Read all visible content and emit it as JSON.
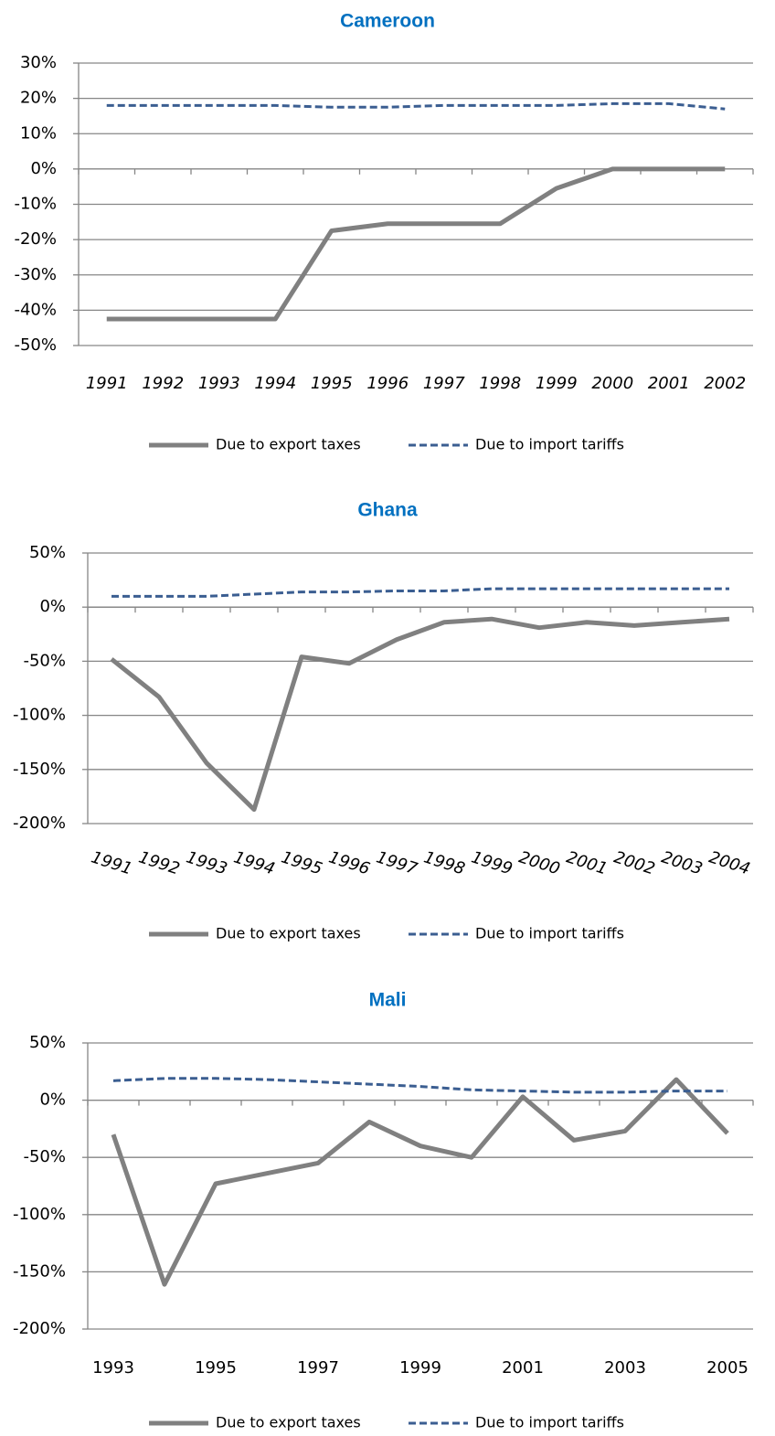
{
  "chart_data": [
    {
      "type": "line",
      "title": "Cameroon",
      "categories": [
        "1991",
        "1992",
        "1993",
        "1994",
        "1995",
        "1996",
        "1997",
        "1998",
        "1999",
        "2000",
        "2001",
        "2002"
      ],
      "series": [
        {
          "name": "Due to export taxes",
          "color": "#808080",
          "dashed": false,
          "values": [
            -42.5,
            -42.5,
            -42.5,
            -42.5,
            -17.5,
            -15.5,
            -15.5,
            -15.5,
            -5.5,
            0,
            0,
            0
          ]
        },
        {
          "name": "Due to import tariffs",
          "color": "#3b5e91",
          "dashed": true,
          "values": [
            18,
            18,
            18,
            18,
            17.5,
            17.5,
            18,
            18,
            18,
            18.5,
            18.5,
            17
          ]
        }
      ],
      "ylim": [
        -50,
        30
      ],
      "yticks": [
        {
          "value": -50,
          "label": "-50%"
        },
        {
          "value": -40,
          "label": "-40%"
        },
        {
          "value": -30,
          "label": "-30%"
        },
        {
          "value": -20,
          "label": "-20%"
        },
        {
          "value": -10,
          "label": "-10%"
        },
        {
          "value": 0,
          "label": "0%"
        },
        {
          "value": 10,
          "label": "10%"
        },
        {
          "value": 20,
          "label": "20%"
        },
        {
          "value": 30,
          "label": "30%"
        }
      ],
      "grid": true,
      "legend": "bottom"
    },
    {
      "type": "line",
      "title": "Ghana",
      "categories": [
        "1991",
        "1992",
        "1993",
        "1994",
        "1995",
        "1996",
        "1997",
        "1998",
        "1999",
        "2000",
        "2001",
        "2002",
        "2003",
        "2004"
      ],
      "series": [
        {
          "name": "Due to export taxes",
          "color": "#808080",
          "dashed": false,
          "values": [
            -48,
            -83,
            -144,
            -187,
            -46,
            -52,
            -30,
            -14,
            -11,
            -19,
            -14,
            -17,
            -14,
            -11
          ]
        },
        {
          "name": "Due to import tariffs",
          "color": "#3b5e91",
          "dashed": true,
          "values": [
            10,
            10,
            10,
            12,
            14,
            14,
            15,
            15,
            17,
            17,
            17,
            17,
            17,
            17
          ]
        }
      ],
      "ylim": [
        -200,
        50
      ],
      "yticks": [
        {
          "value": -200,
          "label": "-200%"
        },
        {
          "value": -150,
          "label": "-150%"
        },
        {
          "value": -100,
          "label": "-100%"
        },
        {
          "value": -50,
          "label": "-50%"
        },
        {
          "value": 0,
          "label": "0%"
        },
        {
          "value": 50,
          "label": "50%"
        }
      ],
      "grid": true,
      "legend": "bottom"
    },
    {
      "type": "line",
      "title": "Mali",
      "x": [
        1993,
        1994,
        1995,
        1996,
        1997,
        1998,
        1999,
        2000,
        2001,
        2002,
        2003,
        2004,
        2005
      ],
      "series": [
        {
          "name": "Due to export taxes",
          "color": "#808080",
          "dashed": false,
          "values": [
            -30,
            -161,
            -73,
            -64,
            -55,
            -19,
            -40,
            -50,
            3,
            -35,
            -27,
            18,
            -29
          ]
        },
        {
          "name": "Due to import tariffs",
          "color": "#3b5e91",
          "dashed": true,
          "values": [
            17,
            19,
            19,
            18,
            16,
            14,
            12,
            9,
            8,
            7,
            7,
            8,
            8
          ]
        }
      ],
      "xlim": [
        1992.5,
        2005.5
      ],
      "xticks": [
        1993,
        1995,
        1997,
        1999,
        2001,
        2003,
        2005
      ],
      "ylim": [
        -200,
        50
      ],
      "yticks": [
        {
          "value": -200,
          "label": "-200%"
        },
        {
          "value": -150,
          "label": "-150%"
        },
        {
          "value": -100,
          "label": "-100%"
        },
        {
          "value": -50,
          "label": "-50%"
        },
        {
          "value": 0,
          "label": "0%"
        },
        {
          "value": 50,
          "label": "50%"
        }
      ],
      "grid": true,
      "legend": "bottom"
    }
  ]
}
